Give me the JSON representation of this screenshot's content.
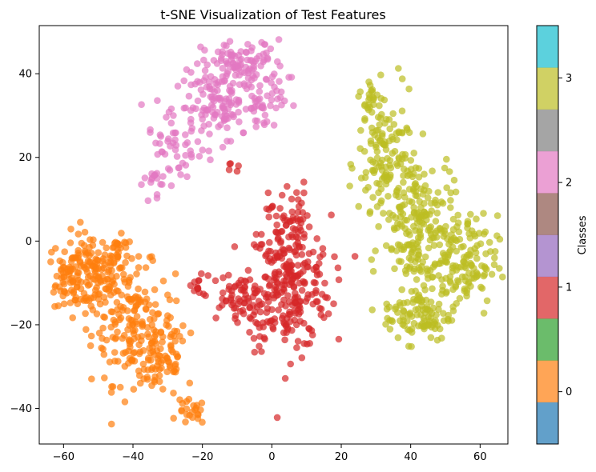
{
  "chart_data": {
    "type": "scatter",
    "title": "t-SNE Visualization of Test Features",
    "xlabel": "",
    "ylabel": "",
    "xlim": [
      -67,
      68
    ],
    "ylim": [
      -48.5,
      51.5
    ],
    "xticks": [
      -60,
      -40,
      -20,
      0,
      20,
      40,
      60
    ],
    "yticks": [
      -40,
      -20,
      0,
      20,
      40
    ],
    "grid": false,
    "marker_alpha": 0.7,
    "colorbar": {
      "label": "Classes",
      "colormap": "tab10",
      "range": [
        -0.5,
        3.5
      ],
      "ticks": [
        0,
        1,
        2,
        3
      ],
      "segment_colors": [
        "#1f77b4",
        "#ff7f0e",
        "#2ca02c",
        "#d62728",
        "#9467bd",
        "#8c564b",
        "#e377c2",
        "#7f7f7f",
        "#bcbd22",
        "#17becf"
      ]
    },
    "series": [
      {
        "name": "0",
        "color": "#ff7f0e",
        "clusters": [
          {
            "center": [
              -52,
              -8
            ],
            "spread": [
              5,
              5
            ],
            "count": 160
          },
          {
            "center": [
              -40,
              -20
            ],
            "spread": [
              6,
              7
            ],
            "count": 170
          },
          {
            "center": [
              -32,
              -28
            ],
            "spread": [
              4,
              5
            ],
            "count": 70
          },
          {
            "center": [
              -23,
              -41
            ],
            "spread": [
              2,
              1.5
            ],
            "count": 22
          },
          {
            "center": [
              -44,
              -3
            ],
            "spread": [
              2,
              2
            ],
            "count": 20
          },
          {
            "center": [
              -58,
              -8
            ],
            "spread": [
              2,
              3
            ],
            "count": 30
          }
        ]
      },
      {
        "name": "1",
        "color": "#d62728",
        "clusters": [
          {
            "center": [
              5,
              -10
            ],
            "spread": [
              6,
              8
            ],
            "count": 260
          },
          {
            "center": [
              -10,
              -14
            ],
            "spread": [
              5,
              3
            ],
            "count": 70
          },
          {
            "center": [
              5,
              6
            ],
            "spread": [
              3,
              4
            ],
            "count": 40
          },
          {
            "center": [
              -22,
              -11
            ],
            "spread": [
              2,
              1.5
            ],
            "count": 12
          },
          {
            "center": [
              -11,
              17
            ],
            "spread": [
              1,
              1.5
            ],
            "count": 5
          }
        ]
      },
      {
        "name": "2",
        "color": "#e377c2",
        "clusters": [
          {
            "center": [
              -8,
              42
            ],
            "spread": [
              6,
              3
            ],
            "count": 110
          },
          {
            "center": [
              -15,
              32
            ],
            "spread": [
              6,
              4
            ],
            "count": 120
          },
          {
            "center": [
              -28,
              22
            ],
            "spread": [
              4,
              4
            ],
            "count": 50
          },
          {
            "center": [
              -34,
              14
            ],
            "spread": [
              1.5,
              2
            ],
            "count": 12
          },
          {
            "center": [
              -2,
              33
            ],
            "spread": [
              3,
              2
            ],
            "count": 30
          }
        ]
      },
      {
        "name": "3",
        "color": "#bcbd22",
        "clusters": [
          {
            "center": [
              33,
              18
            ],
            "spread": [
              4,
              8
            ],
            "count": 120
          },
          {
            "center": [
              42,
              5
            ],
            "spread": [
              5,
              8
            ],
            "count": 180
          },
          {
            "center": [
              53,
              -6
            ],
            "spread": [
              6,
              6
            ],
            "count": 160
          },
          {
            "center": [
              42,
              -18
            ],
            "spread": [
              5,
              3
            ],
            "count": 90
          },
          {
            "center": [
              29,
              33
            ],
            "spread": [
              2,
              3
            ],
            "count": 30
          }
        ]
      }
    ]
  }
}
